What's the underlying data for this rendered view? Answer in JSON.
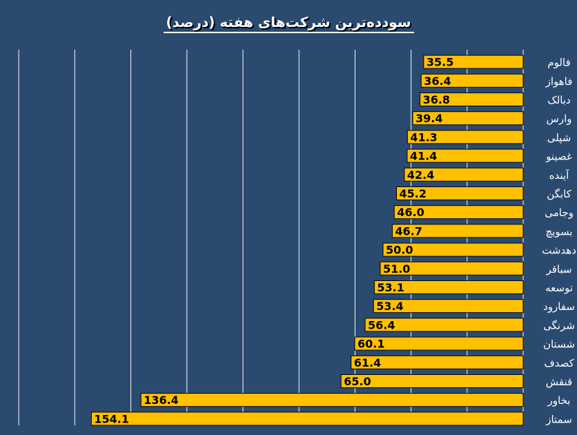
{
  "chart_data": {
    "type": "bar",
    "orientation": "horizontal",
    "title": "سودده‌ترین شرکت‌های هفته (درصد)",
    "categories": [
      "فالوم",
      "فاهواز",
      "دبالک",
      "وارس",
      "شپلی",
      "غصینو",
      "آینده",
      "کابگن",
      "وجامی",
      "بسویچ",
      "دهدشت",
      "سباقر",
      "توسعه",
      "سفارود",
      "شرنگی",
      "شستان",
      "کصدف",
      "قنقش",
      "بخاور",
      "سمتاز"
    ],
    "values": [
      35.5,
      36.4,
      36.8,
      39.4,
      41.3,
      41.4,
      42.4,
      45.2,
      46.0,
      46.7,
      50.0,
      51.0,
      53.1,
      53.4,
      56.4,
      60.1,
      61.4,
      65.0,
      136.4,
      154.1
    ],
    "value_labels": [
      "35.5",
      "36.4",
      "36.8",
      "39.4",
      "41.3",
      "41.4",
      "42.4",
      "45.2",
      "46.0",
      "46.7",
      "50.0",
      "51.0",
      "53.1",
      "53.4",
      "56.4",
      "60.1",
      "61.4",
      "65.0",
      "136.4",
      "154.1"
    ],
    "xlim": [
      0,
      180
    ],
    "grid": true,
    "legend": "none",
    "xlabel": "",
    "ylabel": "",
    "colors": {
      "background": "#2b4a70",
      "bar": "#ffc000",
      "bar_stroke": "#000000",
      "grid": "#ffffff",
      "label_text": "#ffffff",
      "value_text": "#000000"
    }
  }
}
